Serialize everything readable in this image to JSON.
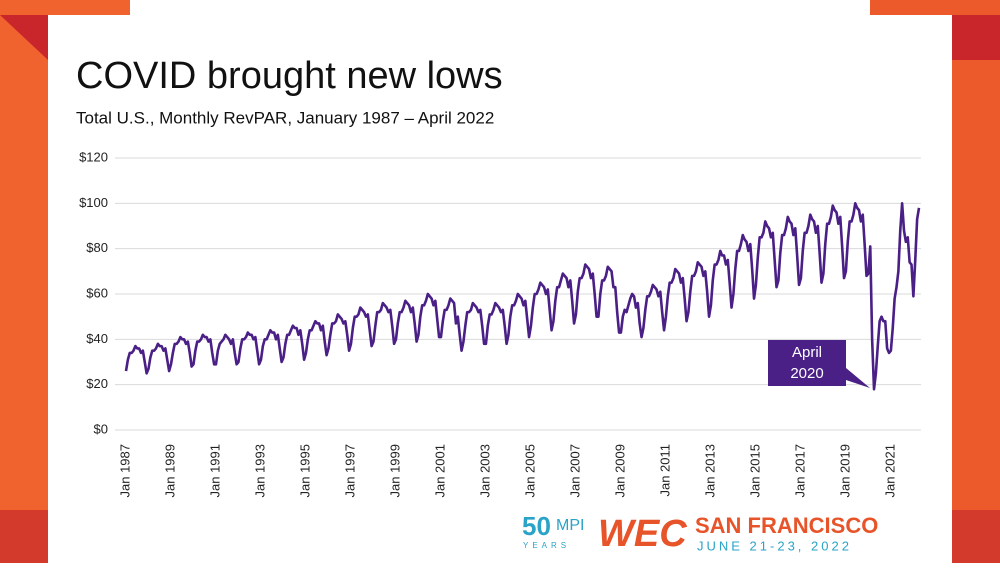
{
  "chart_data": {
    "type": "line",
    "title": "COVID brought new lows",
    "subtitle": "Total U.S., Monthly RevPAR, January 1987 – April 2022",
    "annotation": [
      "April",
      "2020"
    ],
    "color": "#4a1f86",
    "ylim": [
      0,
      120
    ],
    "yticks": [
      {
        "value": 0,
        "label": "$0"
      },
      {
        "value": 20,
        "label": "$20"
      },
      {
        "value": 40,
        "label": "$40"
      },
      {
        "value": 60,
        "label": "$60"
      },
      {
        "value": 80,
        "label": "$80"
      },
      {
        "value": 100,
        "label": "$100"
      },
      {
        "value": 120,
        "label": "$120"
      }
    ],
    "grid": true,
    "categories": [
      "Jan 1987",
      null,
      null,
      null,
      null,
      null,
      null,
      null,
      null,
      null,
      null,
      null,
      null,
      null,
      null,
      null,
      null,
      null,
      null,
      null,
      null,
      null,
      null,
      null,
      "Jan 1989",
      null,
      null,
      null,
      null,
      null,
      null,
      null,
      null,
      null,
      null,
      null,
      null,
      null,
      null,
      null,
      null,
      null,
      null,
      null,
      null,
      null,
      null,
      null,
      "Jan 1991",
      null,
      null,
      null,
      null,
      null,
      null,
      null,
      null,
      null,
      null,
      null,
      null,
      null,
      null,
      null,
      null,
      null,
      null,
      null,
      null,
      null,
      null,
      null,
      "Jan 1993",
      null,
      null,
      null,
      null,
      null,
      null,
      null,
      null,
      null,
      null,
      null,
      null,
      null,
      null,
      null,
      null,
      null,
      null,
      null,
      null,
      null,
      null,
      null,
      "Jan 1995",
      null,
      null,
      null,
      null,
      null,
      null,
      null,
      null,
      null,
      null,
      null,
      null,
      null,
      null,
      null,
      null,
      null,
      null,
      null,
      null,
      null,
      null,
      null,
      "Jan 1997",
      null,
      null,
      null,
      null,
      null,
      null,
      null,
      null,
      null,
      null,
      null,
      null,
      null,
      null,
      null,
      null,
      null,
      null,
      null,
      null,
      null,
      null,
      null,
      "Jan 1999",
      null,
      null,
      null,
      null,
      null,
      null,
      null,
      null,
      null,
      null,
      null,
      null,
      null,
      null,
      null,
      null,
      null,
      null,
      null,
      null,
      null,
      null,
      null,
      "Jan 2001",
      null,
      null,
      null,
      null,
      null,
      null,
      null,
      null,
      null,
      null,
      null,
      null,
      null,
      null,
      null,
      null,
      null,
      null,
      null,
      null,
      null,
      null,
      null,
      "Jan 2003",
      null,
      null,
      null,
      null,
      null,
      null,
      null,
      null,
      null,
      null,
      null,
      null,
      null,
      null,
      null,
      null,
      null,
      null,
      null,
      null,
      null,
      null,
      null,
      "Jan 2005",
      null,
      null,
      null,
      null,
      null,
      null,
      null,
      null,
      null,
      null,
      null,
      null,
      null,
      null,
      null,
      null,
      null,
      null,
      null,
      null,
      null,
      null,
      null,
      "Jan 2007",
      null,
      null,
      null,
      null,
      null,
      null,
      null,
      null,
      null,
      null,
      null,
      null,
      null,
      null,
      null,
      null,
      null,
      null,
      null,
      null,
      null,
      null,
      null,
      "Jan 2009",
      null,
      null,
      null,
      null,
      null,
      null,
      null,
      null,
      null,
      null,
      null,
      null,
      null,
      null,
      null,
      null,
      null,
      null,
      null,
      null,
      null,
      null,
      null,
      "Jan 2011",
      null,
      null,
      null,
      null,
      null,
      null,
      null,
      null,
      null,
      null,
      null,
      null,
      null,
      null,
      null,
      null,
      null,
      null,
      null,
      null,
      null,
      null,
      null,
      "Jan 2013",
      null,
      null,
      null,
      null,
      null,
      null,
      null,
      null,
      null,
      null,
      null,
      null,
      null,
      null,
      null,
      null,
      null,
      null,
      null,
      null,
      null,
      null,
      null,
      "Jan 2015",
      null,
      null,
      null,
      null,
      null,
      null,
      null,
      null,
      null,
      null,
      null,
      null,
      null,
      null,
      null,
      null,
      null,
      null,
      null,
      null,
      null,
      null,
      null,
      "Jan 2017",
      null,
      null,
      null,
      null,
      null,
      null,
      null,
      null,
      null,
      null,
      null,
      null,
      null,
      null,
      null,
      null,
      null,
      null,
      null,
      null,
      null,
      null,
      null,
      "Jan 2019",
      null,
      null,
      null,
      null,
      null,
      null,
      null,
      null,
      null,
      null,
      null,
      null,
      null,
      null,
      null,
      null,
      null,
      null,
      null,
      null,
      null,
      null,
      null,
      "Jan 2021",
      null,
      null,
      null,
      null,
      null,
      null,
      null,
      null,
      null,
      null,
      null,
      null,
      null,
      null,
      null
    ],
    "values": [
      26,
      31,
      34,
      34,
      35,
      37,
      36,
      36,
      34,
      35,
      30,
      25,
      27,
      32,
      35,
      35,
      36,
      38,
      37,
      37,
      35,
      36,
      31,
      26,
      29,
      34,
      38,
      38,
      39,
      41,
      40,
      40,
      38,
      39,
      34,
      28,
      29,
      35,
      39,
      39,
      40,
      42,
      41,
      41,
      39,
      40,
      34,
      29,
      29,
      35,
      38,
      39,
      40,
      42,
      41,
      40,
      38,
      40,
      34,
      29,
      30,
      36,
      40,
      40,
      41,
      43,
      42,
      42,
      40,
      41,
      35,
      29,
      31,
      37,
      40,
      40,
      42,
      44,
      43,
      43,
      40,
      42,
      36,
      30,
      32,
      38,
      42,
      42,
      44,
      46,
      45,
      45,
      42,
      44,
      38,
      31,
      34,
      40,
      44,
      44,
      46,
      48,
      47,
      47,
      44,
      46,
      39,
      33,
      36,
      42,
      47,
      47,
      48,
      51,
      50,
      49,
      47,
      48,
      42,
      35,
      38,
      45,
      50,
      50,
      51,
      54,
      53,
      52,
      50,
      51,
      44,
      37,
      39,
      46,
      52,
      52,
      53,
      56,
      55,
      54,
      52,
      53,
      46,
      38,
      40,
      47,
      52,
      52,
      54,
      57,
      56,
      55,
      52,
      54,
      47,
      39,
      42,
      50,
      55,
      55,
      57,
      60,
      59,
      58,
      55,
      57,
      49,
      41,
      41,
      48,
      53,
      53,
      55,
      58,
      57,
      56,
      47,
      50,
      42,
      35,
      39,
      46,
      52,
      52,
      53,
      56,
      55,
      54,
      52,
      53,
      46,
      38,
      38,
      46,
      51,
      51,
      53,
      56,
      55,
      54,
      52,
      53,
      46,
      38,
      42,
      50,
      55,
      55,
      57,
      60,
      59,
      58,
      55,
      57,
      49,
      41,
      46,
      54,
      60,
      60,
      62,
      65,
      64,
      63,
      60,
      62,
      53,
      44,
      48,
      57,
      63,
      63,
      66,
      69,
      68,
      67,
      63,
      66,
      57,
      47,
      51,
      61,
      67,
      67,
      69,
      73,
      72,
      71,
      67,
      69,
      60,
      50,
      50,
      60,
      66,
      66,
      68,
      72,
      71,
      70,
      63,
      63,
      52,
      43,
      43,
      50,
      53,
      52,
      55,
      58,
      60,
      59,
      54,
      56,
      47,
      41,
      45,
      53,
      59,
      59,
      61,
      64,
      63,
      62,
      59,
      61,
      52,
      44,
      50,
      59,
      65,
      65,
      67,
      71,
      70,
      69,
      65,
      67,
      58,
      48,
      52,
      61,
      68,
      68,
      70,
      74,
      73,
      72,
      68,
      70,
      61,
      50,
      55,
      66,
      73,
      73,
      75,
      79,
      77,
      77,
      73,
      75,
      65,
      54,
      60,
      71,
      79,
      79,
      82,
      86,
      84,
      83,
      79,
      82,
      71,
      58,
      64,
      76,
      85,
      85,
      87,
      92,
      90,
      89,
      85,
      87,
      75,
      63,
      66,
      78,
      86,
      86,
      89,
      94,
      92,
      91,
      86,
      89,
      77,
      64,
      67,
      79,
      87,
      87,
      90,
      95,
      93,
      92,
      87,
      90,
      78,
      65,
      69,
      82,
      91,
      91,
      94,
      99,
      97,
      96,
      91,
      94,
      81,
      67,
      70,
      83,
      92,
      92,
      95,
      100,
      98,
      97,
      92,
      95,
      82,
      68,
      69,
      81,
      40,
      18,
      25,
      37,
      48,
      50,
      48,
      48,
      36,
      34,
      35,
      45,
      58,
      63,
      70,
      88,
      100,
      88,
      83,
      85,
      74,
      73,
      59,
      75,
      93,
      98
    ]
  },
  "branding": {
    "anniversary": "50",
    "mpi": "MPI",
    "years": "YEARS",
    "wec": "WEC",
    "city": "SAN FRANCISCO",
    "dates": "JUNE 21-23, 2022"
  }
}
